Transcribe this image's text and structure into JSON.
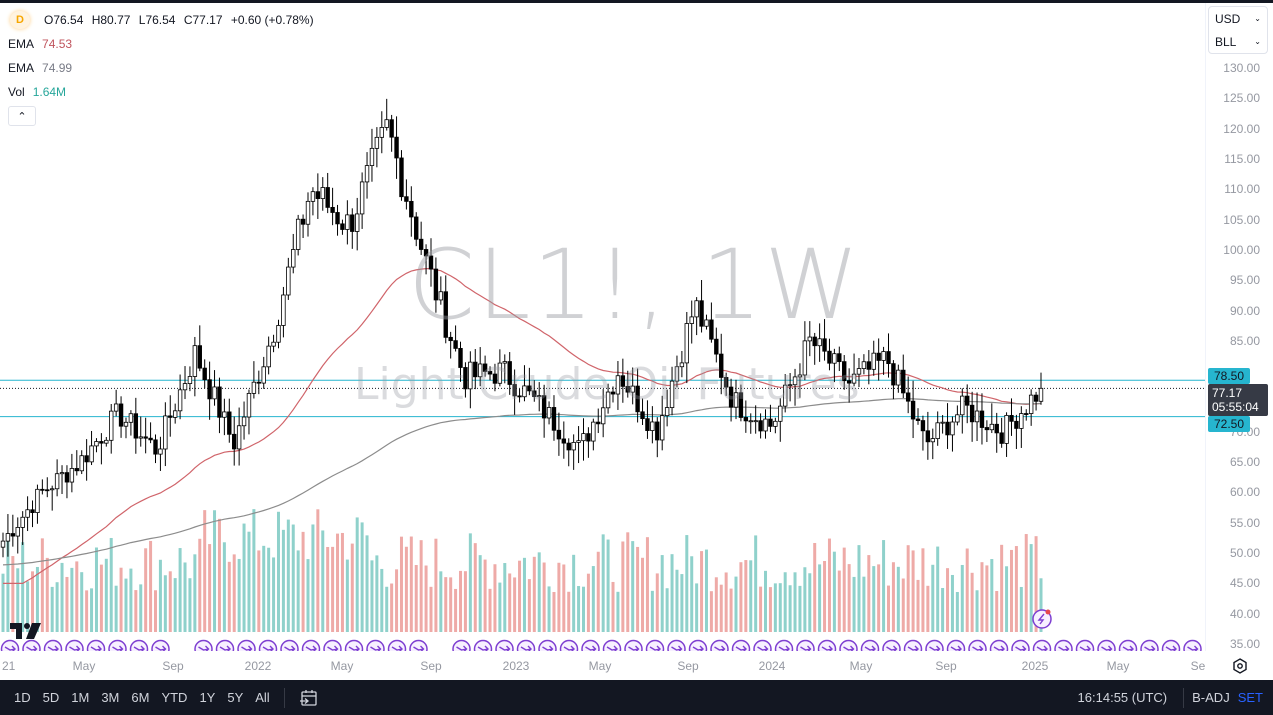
{
  "symbol": "CL1!",
  "interval": "1W",
  "watermark": {
    "title": "CL1!, 1W",
    "subtitle": "Light Crude Oil Futures"
  },
  "legend": {
    "badge": "D",
    "open": "O76.54",
    "high": "H80.77",
    "low": "L76.54",
    "close": "C77.17",
    "change": "+0.60 (+0.78%)",
    "ema1_label": "EMA",
    "ema1_value": "74.53",
    "ema2_label": "EMA",
    "ema2_value": "74.99",
    "vol_label": "Vol",
    "vol_value": "1.64M"
  },
  "price_scale": {
    "currency": "USD",
    "unit": "BLL",
    "ticks": [
      "130.00",
      "125.00",
      "120.00",
      "115.00",
      "110.00",
      "105.00",
      "100.00",
      "95.00",
      "90.00",
      "85.00",
      "70.00",
      "65.00",
      "60.00",
      "55.00",
      "50.00",
      "45.00",
      "40.00",
      "35.00"
    ],
    "level_upper": "78.50",
    "level_lower": "72.50",
    "last_price": "77.17",
    "countdown": "05:55:04"
  },
  "time_scale": {
    "ticks": [
      "21",
      "May",
      "Sep",
      "2022",
      "May",
      "Sep",
      "2023",
      "May",
      "Sep",
      "2024",
      "May",
      "Sep",
      "2025",
      "May",
      "Se"
    ]
  },
  "bottom_bar": {
    "ranges": [
      "1D",
      "5D",
      "1M",
      "3M",
      "6M",
      "YTD",
      "1Y",
      "5Y",
      "All"
    ],
    "clock": "16:14:55 (UTC)",
    "adjustment": "B-ADJ",
    "session": "SET"
  },
  "colors": {
    "up_volume": "#8fd1cb",
    "down_volume": "#eeaaa7",
    "ema_fast": "#d0646a",
    "ema_slow": "#8c8c8c",
    "hline": "#26b5cf",
    "event": "#7e3fd1"
  },
  "chart_data": {
    "type": "candlestick",
    "title": "CL1!, 1W — Light Crude Oil Futures",
    "xlabel": "",
    "ylabel": "USD / BLL",
    "ylim": [
      35,
      131
    ],
    "grid": false,
    "horizontal_lines": [
      78.5,
      72.5
    ],
    "last": {
      "open": 76.54,
      "high": 80.77,
      "low": 76.54,
      "close": 77.17,
      "change": 0.6,
      "change_pct": 0.78
    },
    "indicators": [
      {
        "name": "EMA",
        "value": 74.53,
        "color": "#d0646a"
      },
      {
        "name": "EMA",
        "value": 74.99,
        "color": "#8c8c8c"
      },
      {
        "name": "Vol",
        "value": "1.64M"
      }
    ],
    "approx_closes": [
      {
        "x": "2021-01",
        "close": 52
      },
      {
        "x": "2021-03",
        "close": 60
      },
      {
        "x": "2021-05",
        "close": 65
      },
      {
        "x": "2021-07",
        "close": 73
      },
      {
        "x": "2021-08",
        "close": 67
      },
      {
        "x": "2021-10",
        "close": 83
      },
      {
        "x": "2021-11",
        "close": 68
      },
      {
        "x": "2022-01",
        "close": 86
      },
      {
        "x": "2022-03",
        "close": 110
      },
      {
        "x": "2022-04",
        "close": 104
      },
      {
        "x": "2022-06",
        "close": 120
      },
      {
        "x": "2022-07",
        "close": 98
      },
      {
        "x": "2022-09",
        "close": 79
      },
      {
        "x": "2022-11",
        "close": 80
      },
      {
        "x": "2022-12",
        "close": 74
      },
      {
        "x": "2023-03",
        "close": 67
      },
      {
        "x": "2023-04",
        "close": 80
      },
      {
        "x": "2023-06",
        "close": 70
      },
      {
        "x": "2023-09",
        "close": 91
      },
      {
        "x": "2023-11",
        "close": 75
      },
      {
        "x": "2023-12",
        "close": 71
      },
      {
        "x": "2024-04",
        "close": 85
      },
      {
        "x": "2024-06",
        "close": 78
      },
      {
        "x": "2024-07",
        "close": 82
      },
      {
        "x": "2024-09",
        "close": 68
      },
      {
        "x": "2024-10",
        "close": 74
      },
      {
        "x": "2024-12",
        "close": 70
      },
      {
        "x": "2025-01",
        "close": 77.17
      }
    ]
  }
}
